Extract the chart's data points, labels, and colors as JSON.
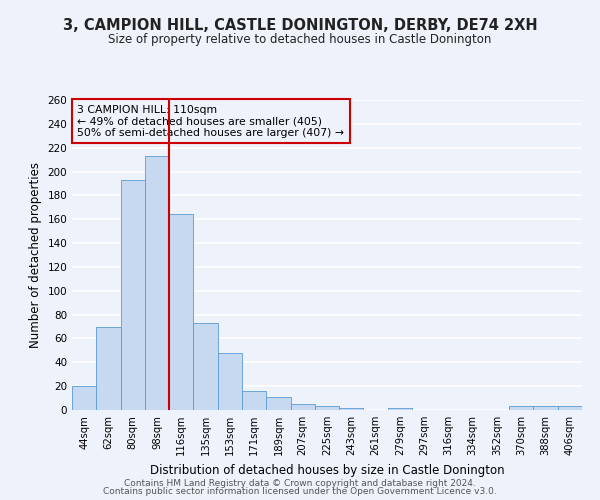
{
  "title": "3, CAMPION HILL, CASTLE DONINGTON, DERBY, DE74 2XH",
  "subtitle": "Size of property relative to detached houses in Castle Donington",
  "xlabel": "Distribution of detached houses by size in Castle Donington",
  "ylabel": "Number of detached properties",
  "bin_labels": [
    "44sqm",
    "62sqm",
    "80sqm",
    "98sqm",
    "116sqm",
    "135sqm",
    "153sqm",
    "171sqm",
    "189sqm",
    "207sqm",
    "225sqm",
    "243sqm",
    "261sqm",
    "279sqm",
    "297sqm",
    "316sqm",
    "334sqm",
    "352sqm",
    "370sqm",
    "388sqm",
    "406sqm"
  ],
  "bar_values": [
    20,
    70,
    193,
    213,
    164,
    73,
    48,
    16,
    11,
    5,
    3,
    2,
    0,
    2,
    0,
    0,
    0,
    0,
    3,
    3,
    3
  ],
  "bar_color": "#c6d9f1",
  "bar_edgecolor": "#5b9bd5",
  "highlight_line_color": "#cc0000",
  "annotation_text": "3 CAMPION HILL: 110sqm\n← 49% of detached houses are smaller (405)\n50% of semi-detached houses are larger (407) →",
  "annotation_box_edgecolor": "#cc0000",
  "ylim": [
    0,
    260
  ],
  "yticks": [
    0,
    20,
    40,
    60,
    80,
    100,
    120,
    140,
    160,
    180,
    200,
    220,
    240,
    260
  ],
  "background_color": "#eef2fa",
  "grid_color": "#ffffff",
  "footer_line1": "Contains HM Land Registry data © Crown copyright and database right 2024.",
  "footer_line2": "Contains public sector information licensed under the Open Government Licence v3.0."
}
